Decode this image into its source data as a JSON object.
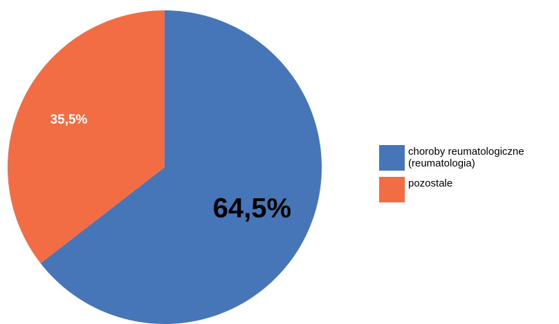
{
  "chart_data": {
    "type": "pie",
    "categories": [
      "choroby reumatologiczne\n(reumatologia)",
      "pozostale"
    ],
    "values": [
      64.5,
      35.5
    ],
    "data_labels": [
      "64,5%",
      "35,5%"
    ],
    "colors": [
      "#4675B8",
      "#F26D44"
    ],
    "label_colors": [
      "#000000",
      "#ffffff"
    ],
    "start_angle_deg": 0,
    "direction": "clockwise",
    "legend_position": "right"
  }
}
